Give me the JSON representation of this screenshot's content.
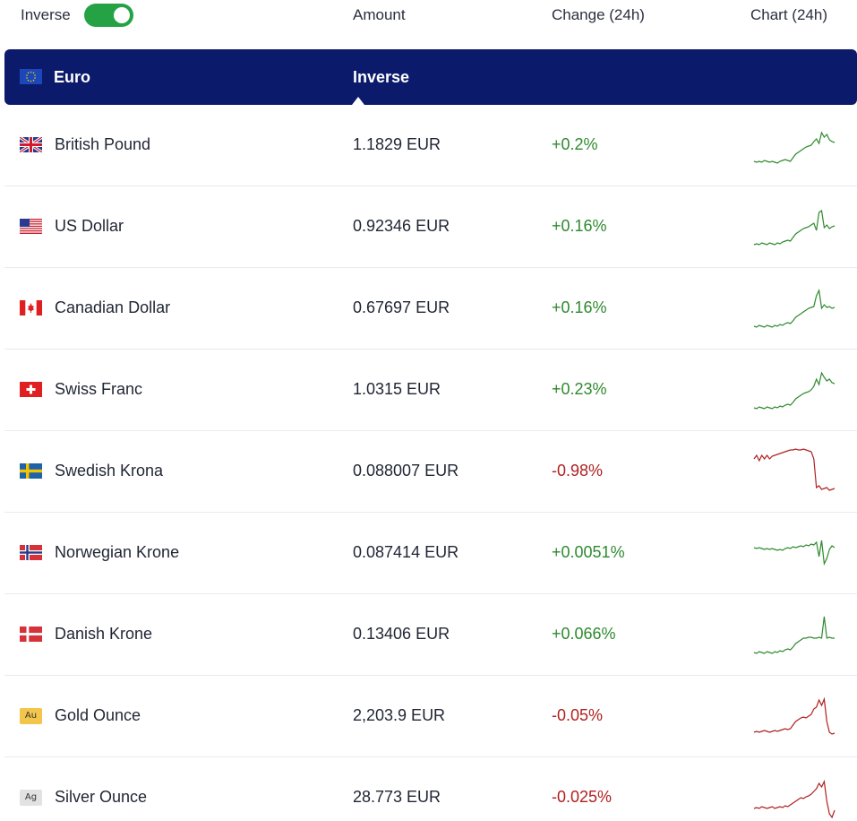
{
  "header": {
    "inverse_label": "Inverse",
    "inverse_on": true,
    "amount_label": "Amount",
    "change_label": "Change (24h)",
    "chart_label": "Chart (24h)"
  },
  "base": {
    "name": "Euro",
    "mode_label": "Inverse",
    "flag": "eu-flag-icon"
  },
  "rows": [
    {
      "name": "British Pound",
      "amount": "1.1829 EUR",
      "change": "+0.2%",
      "direction": "up",
      "flag": "uk-flag-icon",
      "color": "#2e8a2e",
      "spark": [
        8,
        7,
        8,
        7,
        9,
        8,
        7,
        8,
        7,
        6,
        8,
        9,
        10,
        9,
        8,
        12,
        16,
        18,
        20,
        22,
        24,
        25,
        26,
        30,
        33,
        28,
        40,
        35,
        38,
        32,
        30,
        29
      ]
    },
    {
      "name": "US Dollar",
      "amount": "0.92346 EUR",
      "change": "+0.16%",
      "direction": "up",
      "flag": "us-flag-icon",
      "color": "#2e8a2e",
      "spark": [
        6,
        7,
        6,
        8,
        7,
        6,
        8,
        7,
        6,
        8,
        7,
        9,
        10,
        11,
        10,
        14,
        18,
        20,
        22,
        24,
        25,
        26,
        28,
        30,
        22,
        42,
        44,
        25,
        28,
        24,
        26,
        27
      ]
    },
    {
      "name": "Canadian Dollar",
      "amount": "0.67697 EUR",
      "change": "+0.16%",
      "direction": "up",
      "flag": "ca-flag-icon",
      "color": "#2e8a2e",
      "spark": [
        6,
        5,
        7,
        6,
        5,
        7,
        6,
        5,
        7,
        6,
        8,
        7,
        9,
        10,
        9,
        12,
        16,
        18,
        20,
        22,
        24,
        26,
        27,
        28,
        40,
        46,
        26,
        30,
        27,
        28,
        26,
        27
      ]
    },
    {
      "name": "Swiss Franc",
      "amount": "1.0315 EUR",
      "change": "+0.23%",
      "direction": "up",
      "flag": "ch-flag-icon",
      "color": "#2e8a2e",
      "spark": [
        6,
        5,
        7,
        6,
        5,
        7,
        6,
        5,
        7,
        6,
        8,
        7,
        9,
        10,
        9,
        12,
        16,
        18,
        20,
        22,
        23,
        24,
        26,
        30,
        38,
        32,
        45,
        40,
        36,
        38,
        34,
        33
      ]
    },
    {
      "name": "Swedish Krona",
      "amount": "0.088007 EUR",
      "change": "-0.98%",
      "direction": "down",
      "flag": "se-flag-icon",
      "color": "#b02020",
      "spark": [
        40,
        44,
        38,
        44,
        40,
        44,
        40,
        43,
        44,
        45,
        46,
        47,
        48,
        49,
        50,
        50,
        51,
        50,
        50,
        51,
        50,
        49,
        48,
        40,
        8,
        10,
        6,
        7,
        8,
        5,
        6,
        7
      ]
    },
    {
      "name": "Norwegian Krone",
      "amount": "0.087414 EUR",
      "change": "+0.0051%",
      "direction": "up",
      "flag": "no-flag-icon",
      "color": "#2e8a2e",
      "spark": [
        32,
        31,
        32,
        31,
        30,
        31,
        30,
        31,
        30,
        29,
        30,
        29,
        31,
        32,
        31,
        33,
        32,
        33,
        34,
        33,
        35,
        34,
        36,
        35,
        38,
        22,
        40,
        14,
        20,
        30,
        34,
        32
      ]
    },
    {
      "name": "Danish Krone",
      "amount": "0.13406 EUR",
      "change": "+0.066%",
      "direction": "up",
      "flag": "dk-flag-icon",
      "color": "#2e8a2e",
      "spark": [
        6,
        5,
        7,
        6,
        5,
        7,
        6,
        5,
        7,
        6,
        8,
        7,
        9,
        10,
        9,
        12,
        16,
        18,
        20,
        22,
        22,
        23,
        23,
        22,
        22,
        23,
        22,
        46,
        22,
        23,
        22,
        22
      ]
    },
    {
      "name": "Gold Ounce",
      "amount": "2,203.9 EUR",
      "change": "-0.05%",
      "direction": "down",
      "flag": "gold-metal-icon",
      "metal_label": "Au",
      "color": "#b02020",
      "spark": [
        8,
        9,
        8,
        9,
        10,
        9,
        8,
        9,
        10,
        9,
        10,
        11,
        12,
        11,
        12,
        16,
        20,
        22,
        24,
        25,
        24,
        26,
        28,
        34,
        36,
        44,
        38,
        45,
        20,
        8,
        6,
        7
      ]
    },
    {
      "name": "Silver Ounce",
      "amount": "28.773 EUR",
      "change": "-0.025%",
      "direction": "down",
      "flag": "silver-metal-icon",
      "metal_label": "Ag",
      "color": "#b02020",
      "spark": [
        14,
        15,
        14,
        16,
        15,
        14,
        15,
        16,
        14,
        15,
        16,
        15,
        17,
        16,
        18,
        20,
        22,
        24,
        26,
        25,
        27,
        28,
        30,
        33,
        36,
        42,
        38,
        44,
        22,
        8,
        4,
        12
      ]
    }
  ]
}
